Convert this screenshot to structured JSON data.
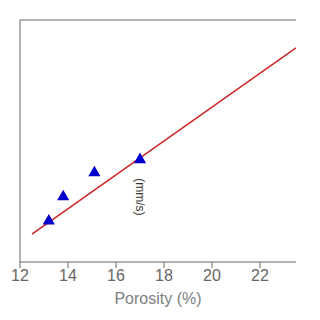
{
  "chart_data": {
    "type": "scatter",
    "xlabel": "Porosity (%)",
    "xlim": [
      12,
      23.5
    ],
    "xticks": [
      12,
      14,
      16,
      18,
      20,
      22
    ],
    "ylim": [
      0.0,
      13.0
    ],
    "tick_labels": "x",
    "grid": false,
    "series": [
      {
        "type": "line",
        "color": "#cc2222",
        "x": [
          12.5,
          23.5
        ],
        "values": [
          1.5,
          11.5
        ]
      },
      {
        "type": "scatter",
        "color": "#0000cc",
        "marker": "triangle",
        "x": [
          13.2,
          13.8,
          15.1,
          17.0
        ],
        "values": [
          2.2,
          3.5,
          4.8,
          5.5
        ]
      }
    ],
    "annotations": [
      {
        "text": "(mm/s)",
        "x": 17.0,
        "y": 3.5
      }
    ]
  }
}
